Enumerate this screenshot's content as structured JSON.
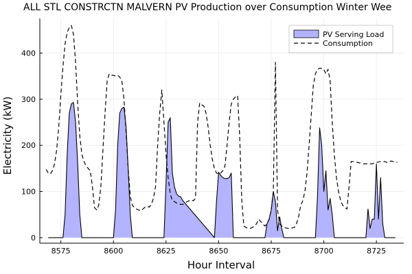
{
  "chart_data": {
    "type": "area",
    "title": "ALL STL CONSTRCTN MALVERN PV Production over Consumption Winter Wee",
    "xlabel": "Hour Interval",
    "ylabel": "Electricity (kW)",
    "xlim": [
      8565,
      8738
    ],
    "ylim": [
      -12,
      475
    ],
    "xticks": [
      8575,
      8600,
      8625,
      8650,
      8675,
      8700,
      8725
    ],
    "yticks": [
      0,
      100,
      200,
      300,
      400
    ],
    "grid": true,
    "legend_position": "top-right",
    "colors": {
      "pv_fill": "#b3b3ff",
      "pv_line": "#000000",
      "consumption_line": "#000000",
      "grid": "#ebebeb",
      "axis": "#000000"
    },
    "series": [
      {
        "name": "PV Serving Load",
        "style": "filled-area",
        "x": [
          8569,
          8576,
          8577,
          8578,
          8579,
          8580,
          8581,
          8582,
          8583,
          8584,
          8585,
          8600,
          8601,
          8602,
          8603,
          8604,
          8605,
          8606,
          8607,
          8608,
          8609,
          8624,
          8625,
          8626,
          8627,
          8628,
          8629,
          8630,
          8631,
          8632,
          8633,
          8648,
          8649,
          8650,
          8651,
          8652,
          8653,
          8654,
          8655,
          8656,
          8657,
          8672,
          8673,
          8674,
          8675,
          8676,
          8677,
          8678,
          8679,
          8680,
          8681,
          8696,
          8697,
          8698,
          8699,
          8700,
          8701,
          8702,
          8703,
          8704,
          8705,
          8720,
          8721,
          8722,
          8723,
          8724,
          8725,
          8726,
          8727,
          8728,
          8729,
          8734
        ],
        "values": [
          0,
          0,
          50,
          180,
          270,
          290,
          293,
          250,
          160,
          50,
          0,
          0,
          60,
          200,
          270,
          280,
          283,
          240,
          150,
          50,
          0,
          0,
          120,
          250,
          260,
          140,
          110,
          95,
          90,
          88,
          80,
          0,
          80,
          142,
          135,
          130,
          128,
          128,
          130,
          140,
          0,
          0,
          30,
          40,
          60,
          100,
          78,
          15,
          45,
          20,
          0,
          0,
          90,
          238,
          200,
          100,
          145,
          60,
          85,
          50,
          0,
          0,
          62,
          20,
          40,
          40,
          160,
          40,
          130,
          30,
          0,
          0
        ]
      },
      {
        "name": "Consumption",
        "style": "dashed-line",
        "x": [
          8568,
          8569,
          8570,
          8571,
          8572,
          8573,
          8574,
          8575,
          8576,
          8577,
          8578,
          8579,
          8580,
          8581,
          8582,
          8583,
          8584,
          8585,
          8586,
          8587,
          8588,
          8589,
          8590,
          8591,
          8592,
          8593,
          8594,
          8595,
          8596,
          8597,
          8598,
          8599,
          8600,
          8601,
          8602,
          8603,
          8604,
          8605,
          8606,
          8607,
          8608,
          8609,
          8610,
          8611,
          8612,
          8613,
          8614,
          8615,
          8616,
          8617,
          8618,
          8619,
          8620,
          8621,
          8622,
          8623,
          8624,
          8625,
          8626,
          8627,
          8628,
          8629,
          8630,
          8631,
          8632,
          8633,
          8634,
          8635,
          8636,
          8637,
          8638,
          8639,
          8640,
          8641,
          8642,
          8643,
          8644,
          8645,
          8646,
          8647,
          8648,
          8649,
          8650,
          8651,
          8652,
          8653,
          8654,
          8655,
          8656,
          8657,
          8658,
          8659,
          8660,
          8661,
          8662,
          8663,
          8664,
          8665,
          8666,
          8667,
          8668,
          8669,
          8670,
          8671,
          8672,
          8673,
          8674,
          8675,
          8676,
          8677,
          8678,
          8679,
          8680,
          8681,
          8682,
          8683,
          8684,
          8685,
          8686,
          8687,
          8688,
          8689,
          8690,
          8691,
          8692,
          8693,
          8694,
          8695,
          8696,
          8697,
          8698,
          8699,
          8700,
          8701,
          8702,
          8703,
          8704,
          8705,
          8706,
          8707,
          8708,
          8709,
          8710,
          8711,
          8712,
          8713,
          8714,
          8715,
          8716,
          8717,
          8718,
          8719,
          8720,
          8721,
          8722,
          8723,
          8724,
          8725,
          8726,
          8727,
          8728,
          8729,
          8730,
          8731,
          8732,
          8733,
          8734,
          8735
        ],
        "values": [
          148,
          140,
          138,
          145,
          160,
          190,
          240,
          310,
          370,
          420,
          445,
          455,
          460,
          440,
          380,
          290,
          220,
          180,
          165,
          155,
          150,
          145,
          110,
          65,
          60,
          70,
          110,
          190,
          270,
          340,
          355,
          352,
          352,
          350,
          352,
          348,
          340,
          300,
          230,
          150,
          90,
          70,
          65,
          62,
          60,
          58,
          62,
          66,
          68,
          66,
          72,
          85,
          110,
          200,
          270,
          320,
          250,
          180,
          130,
          95,
          80,
          78,
          75,
          74,
          72,
          72,
          75,
          78,
          80,
          82,
          80,
          85,
          250,
          292,
          288,
          285,
          270,
          240,
          200,
          170,
          150,
          140,
          138,
          140,
          145,
          155,
          200,
          250,
          290,
          300,
          305,
          308,
          220,
          80,
          25,
          22,
          20,
          20,
          22,
          25,
          30,
          40,
          35,
          30,
          25,
          30,
          40,
          60,
          100,
          380,
          60,
          30,
          25,
          22,
          21,
          20,
          20,
          21,
          22,
          30,
          45,
          70,
          80,
          100,
          140,
          200,
          265,
          330,
          355,
          365,
          367,
          367,
          365,
          355,
          365,
          340,
          250,
          180,
          130,
          100,
          80,
          70,
          65,
          62,
          110,
          165,
          165,
          164,
          163,
          162,
          161,
          160,
          160,
          160,
          160,
          160,
          162,
          163,
          164,
          165,
          165,
          165,
          163,
          165,
          166,
          165,
          164,
          163
        ]
      }
    ]
  }
}
